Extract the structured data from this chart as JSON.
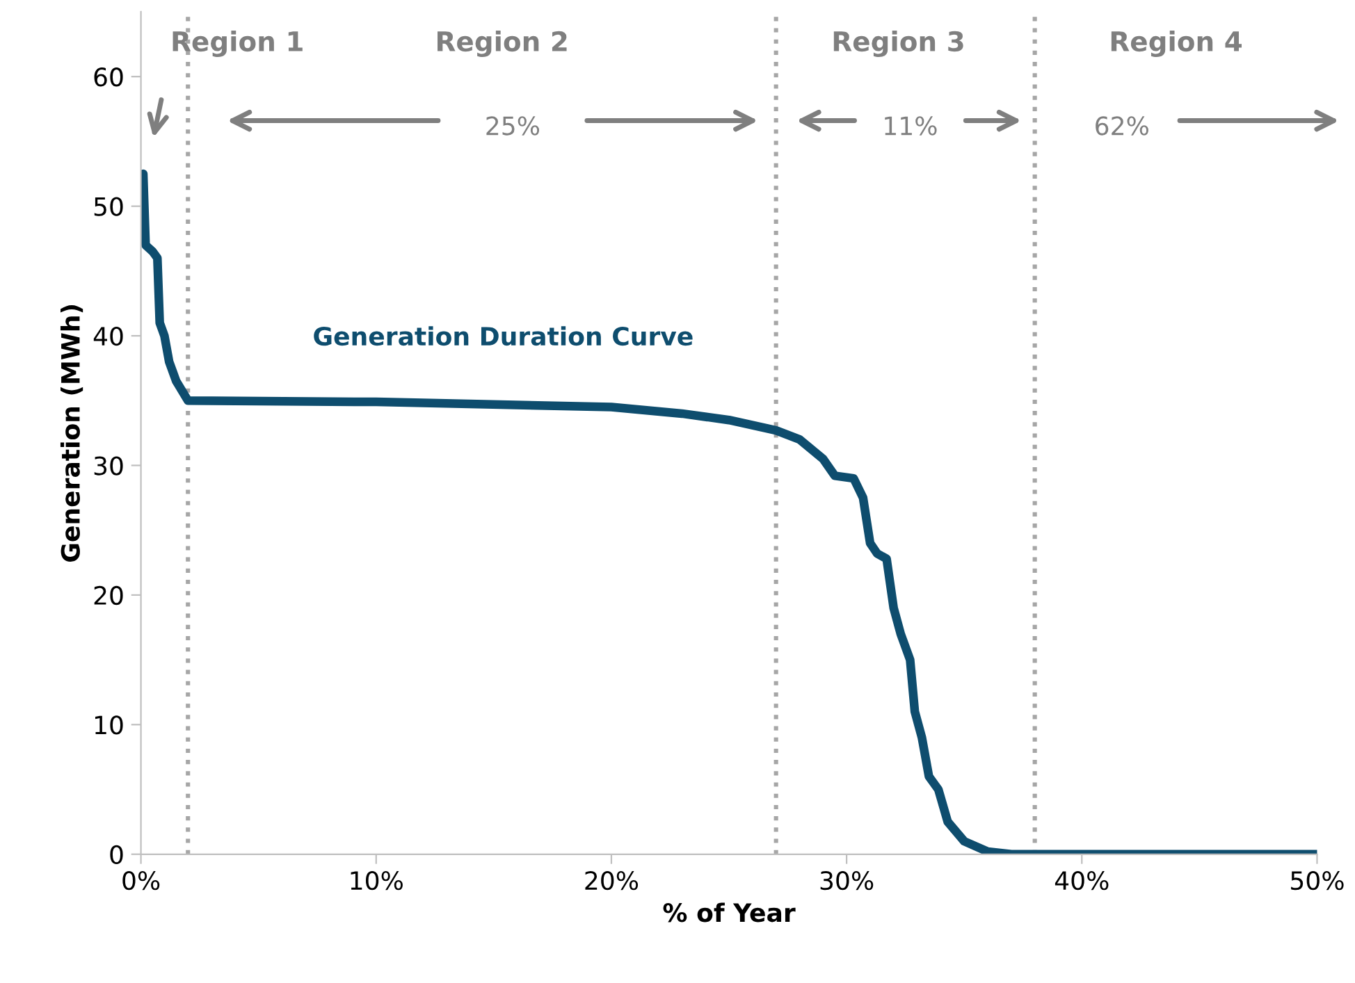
{
  "chart_data": {
    "type": "line",
    "xlabel": "% of Year",
    "ylabel": "Generation (MWh)",
    "x": [
      0.1,
      0.2,
      0.5,
      0.7,
      0.8,
      1.0,
      1.2,
      1.5,
      2,
      10,
      20,
      23,
      25,
      27,
      28,
      29,
      29.5,
      30.3,
      30.7,
      31,
      31.3,
      31.7,
      32,
      32.3,
      32.7,
      32.9,
      33.2,
      33.5,
      33.9,
      34.3,
      35,
      36,
      37,
      50
    ],
    "series": [
      {
        "name": "Generation Duration Curve",
        "color": "#0e4d6e",
        "values": [
          52.5,
          47,
          46.5,
          46,
          41,
          40,
          38,
          36.5,
          35,
          34.9,
          34.5,
          34,
          33.5,
          32.7,
          32,
          30.5,
          29.2,
          29,
          27.5,
          24,
          23.2,
          22.8,
          19,
          17,
          15,
          11,
          9,
          6,
          5,
          2.5,
          1,
          0.2,
          0,
          0
        ]
      }
    ],
    "xlim": [
      0,
      50
    ],
    "ylim": [
      0,
      65
    ],
    "xticks": [
      {
        "value": 0,
        "label": "0%"
      },
      {
        "value": 10,
        "label": "10%"
      },
      {
        "value": 20,
        "label": "20%"
      },
      {
        "value": 30,
        "label": "30%"
      },
      {
        "value": 40,
        "label": "40%"
      },
      {
        "value": 50,
        "label": "50%"
      }
    ],
    "yticks": [
      0,
      10,
      20,
      30,
      40,
      50,
      60
    ],
    "ref_lines": [
      {
        "axis": "x",
        "value": 2,
        "color": "#a6a6a6",
        "line_style": "dotted"
      },
      {
        "axis": "x",
        "value": 27,
        "color": "#a6a6a6",
        "line_style": "dotted"
      },
      {
        "axis": "x",
        "value": 38,
        "color": "#a6a6a6",
        "line_style": "dotted"
      }
    ],
    "annotations": [
      "Region 1",
      "Region 2",
      "Region 3",
      "Region 4",
      "25%",
      "11%",
      "62%"
    ],
    "grid": false,
    "legend": false,
    "marker": "none",
    "line_style": "solid"
  }
}
